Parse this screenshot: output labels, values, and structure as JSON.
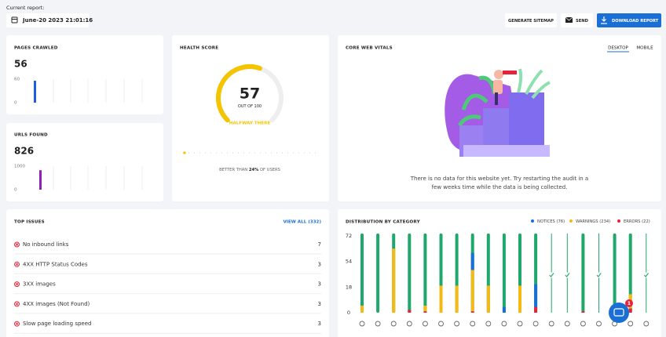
{
  "header": {
    "label": "Current report:",
    "date": "June-20 2023 21:01:16",
    "buttons": [
      "GENERATE SITEMAP",
      "SEND",
      "DOWNLOAD REPORT"
    ]
  },
  "pages_crawled": {
    "title": "PAGES CRAWLED",
    "value": 56,
    "ylim": [
      0,
      60
    ],
    "yticks": [
      0,
      60
    ],
    "values": [
      56
    ],
    "color": "#1a5fe0"
  },
  "urls_found": {
    "title": "URLS FOUND",
    "value": 826,
    "ylim": [
      0,
      1000
    ],
    "yticks": [
      0,
      1000
    ],
    "values": [
      826
    ],
    "color": "#8e1fb8"
  },
  "health_score": {
    "title": "HEALTH SCORE",
    "value": 57,
    "out_of": {
      "prefix": "OUT OF",
      "value": 100
    },
    "status": "HALFWAY THERE",
    "footer": {
      "prefix": "BETTER THAN",
      "highlight": "24%",
      "suffix": "OF USERS"
    },
    "color": "#f5c400"
  },
  "core_web_vitals": {
    "title": "CORE WEB VITALS",
    "tabs": [
      "DESKTOP",
      "MOBILE"
    ],
    "message_lines": [
      "There is no data for this website yet. Try restarting the audit in a",
      "few weeks time while the data is being collected."
    ]
  },
  "top_issues": {
    "title": "TOP ISSUES",
    "view_all": "VIEW ALL (332)",
    "items": [
      {
        "label": "No inbound links",
        "count": 7
      },
      {
        "label": "4XX HTTP Status Codes",
        "count": 3
      },
      {
        "label": "3XX images",
        "count": 3
      },
      {
        "label": "4XX images (Not Found)",
        "count": 3
      },
      {
        "label": "Slow page loading speed",
        "count": 3
      }
    ]
  },
  "distribution": {
    "title": "DISTRIBUTION BY CATEGORY",
    "legend": [
      {
        "name": "NOTICES (76)",
        "color": "#1a6fd4"
      },
      {
        "name": "WARNINGS (234)",
        "color": "#f5b914"
      },
      {
        "name": "ERRORS (22)",
        "color": "#e5243b"
      }
    ],
    "passed_color": "#1fa86b",
    "yticks": [
      0,
      18,
      54,
      72
    ],
    "columns": [
      {
        "errors": 0,
        "warnings": 5,
        "notices": 0
      },
      {
        "errors": 0,
        "warnings": 0,
        "notices": 0
      },
      {
        "errors": 0,
        "warnings": 63,
        "notices": 0
      },
      {
        "errors": 2,
        "warnings": 0,
        "notices": 0
      },
      {
        "errors": 1,
        "warnings": 4,
        "notices": 0
      },
      {
        "errors": 0,
        "warnings": 20,
        "notices": 0
      },
      {
        "errors": 0,
        "warnings": 20,
        "notices": 0
      },
      {
        "errors": 1,
        "warnings": 41,
        "notices": 18
      },
      {
        "errors": 0,
        "warnings": 20,
        "notices": 0
      },
      {
        "errors": 0,
        "warnings": 0,
        "notices": 4
      },
      {
        "errors": 0,
        "warnings": 20,
        "notices": 0
      },
      {
        "errors": 4,
        "warnings": 0,
        "notices": 18
      },
      {
        "errors": 0,
        "warnings": 0,
        "notices": 0,
        "passed": true
      },
      {
        "errors": 0,
        "warnings": 0,
        "notices": 0,
        "passed": true
      },
      {
        "errors": 1,
        "warnings": 0,
        "notices": 0
      },
      {
        "errors": 0,
        "warnings": 0,
        "notices": 0,
        "passed": true
      },
      {
        "errors": 0,
        "warnings": 0,
        "notices": 0
      },
      {
        "errors": 3,
        "warnings": 10,
        "notices": 0
      },
      {
        "errors": 0,
        "warnings": 0,
        "notices": 0,
        "passed": true
      }
    ]
  },
  "chat_badge": 1
}
